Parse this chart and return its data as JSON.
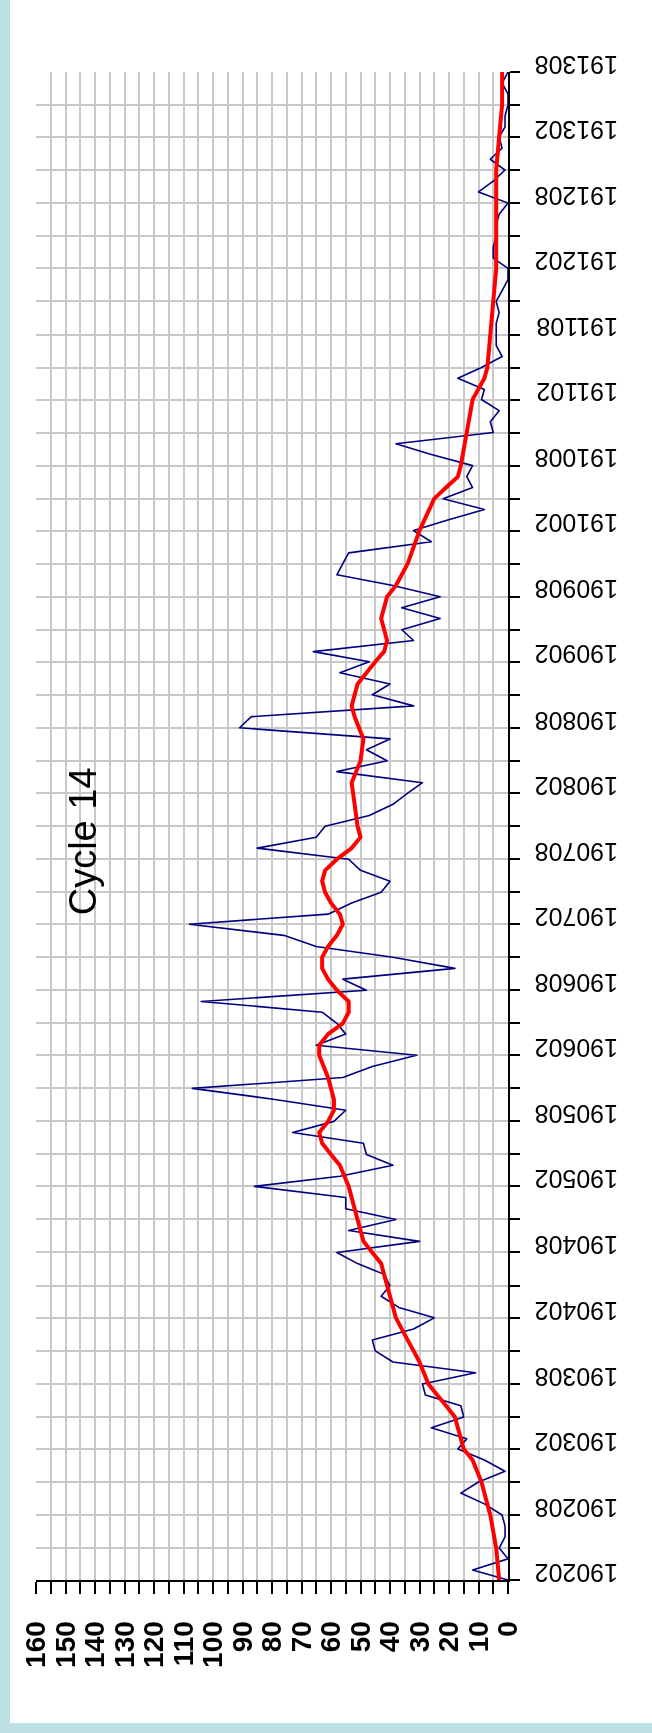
{
  "chart_data": {
    "type": "line",
    "title": "Cycle 14",
    "orientation": "horizontal",
    "x": [
      "1902-02",
      "1902-03",
      "1902-04",
      "1902-05",
      "1902-06",
      "1902-07",
      "1902-08",
      "1902-09",
      "1902-10",
      "1902-11",
      "1902-12",
      "1903-01",
      "1903-02",
      "1903-03",
      "1903-04",
      "1903-05",
      "1903-06",
      "1903-07",
      "1903-08",
      "1903-09",
      "1903-10",
      "1903-11",
      "1903-12",
      "1904-01",
      "1904-02",
      "1904-03",
      "1904-04",
      "1904-05",
      "1904-06",
      "1904-07",
      "1904-08",
      "1904-09",
      "1904-10",
      "1904-11",
      "1904-12",
      "1905-01",
      "1905-02",
      "1905-03",
      "1905-04",
      "1905-05",
      "1905-06",
      "1905-07",
      "1905-08",
      "1905-09",
      "1905-10",
      "1905-11",
      "1905-12",
      "1906-01",
      "1906-02",
      "1906-03",
      "1906-04",
      "1906-05",
      "1906-06",
      "1906-07",
      "1906-08",
      "1906-09",
      "1906-10",
      "1906-11",
      "1906-12",
      "1907-01",
      "1907-02",
      "1907-03",
      "1907-04",
      "1907-05",
      "1907-06",
      "1907-07",
      "1907-08",
      "1907-09",
      "1907-10",
      "1907-11",
      "1907-12",
      "1908-01",
      "1908-02",
      "1908-03",
      "1908-04",
      "1908-05",
      "1908-06",
      "1908-07",
      "1908-08",
      "1908-09",
      "1908-10",
      "1908-11",
      "1908-12",
      "1909-01",
      "1909-02",
      "1909-03",
      "1909-04",
      "1909-05",
      "1909-06",
      "1909-07",
      "1909-08",
      "1909-09",
      "1909-10",
      "1909-11",
      "1909-12",
      "1910-01",
      "1910-02",
      "1910-03",
      "1910-04",
      "1910-05",
      "1910-06",
      "1910-07",
      "1910-08",
      "1910-09",
      "1910-10",
      "1910-11",
      "1910-12",
      "1911-01",
      "1911-02",
      "1911-03",
      "1911-04",
      "1911-05",
      "1911-06",
      "1911-07",
      "1911-08",
      "1911-09",
      "1911-10",
      "1911-11",
      "1911-12",
      "1912-01",
      "1912-02",
      "1912-03",
      "1912-04",
      "1912-05",
      "1912-06",
      "1912-07",
      "1912-08",
      "1912-09",
      "1912-10",
      "1912-11",
      "1912-12",
      "1913-01",
      "1913-02",
      "1913-03",
      "1913-04",
      "1913-05",
      "1913-06",
      "1913-07",
      "1913-08"
    ],
    "series": [
      {
        "color": "#000080",
        "values": [
          0,
          12,
          0,
          3,
          1,
          1,
          2,
          8,
          16,
          10,
          1,
          8,
          17,
          14,
          26,
          15,
          16,
          28,
          29,
          11,
          39,
          45,
          46,
          32,
          25,
          37,
          43,
          40,
          42,
          51,
          58,
          30,
          54,
          38,
          55,
          55,
          86,
          57,
          39,
          48,
          49,
          73,
          59,
          55,
          79,
          107,
          56,
          46,
          31,
          65,
          55,
          58,
          63,
          104,
          48,
          56,
          18,
          39,
          65,
          76,
          108,
          61,
          53,
          43,
          40,
          50,
          54,
          85,
          65,
          62,
          47,
          39,
          34,
          29,
          58,
          41,
          48,
          40,
          91,
          87,
          32,
          46,
          40,
          57,
          47,
          66,
          32,
          36,
          23,
          36,
          23,
          39,
          58,
          56,
          54,
          26,
          32,
          21,
          8,
          22,
          12,
          14,
          12,
          26,
          38,
          5,
          6,
          3,
          9,
          8,
          17,
          9,
          2,
          4,
          4,
          4,
          3,
          4,
          2,
          0,
          0,
          5,
          5,
          4,
          4,
          3,
          0,
          10,
          5,
          1,
          6,
          2,
          3,
          1,
          1,
          0,
          0,
          2,
          0
        ]
      },
      {
        "color": "#ff0000",
        "x": [
          "1902-02",
          "1902-05",
          "1902-08",
          "1902-11",
          "1903-01",
          "1903-02",
          "1903-04",
          "1903-05",
          "1903-06",
          "1903-07",
          "1903-08",
          "1903-10",
          "1903-11",
          "1903-12",
          "1904-02",
          "1904-05",
          "1904-07",
          "1904-08",
          "1904-09",
          "1904-10",
          "1904-12",
          "1905-02",
          "1905-04",
          "1905-05",
          "1905-06",
          "1905-07",
          "1905-08",
          "1905-09",
          "1905-10",
          "1905-12",
          "1906-02",
          "1906-03",
          "1906-04",
          "1906-05",
          "1906-06",
          "1906-07",
          "1906-08",
          "1906-09",
          "1906-10",
          "1906-11",
          "1906-12",
          "1907-01",
          "1907-02",
          "1907-03",
          "1907-04",
          "1907-05",
          "1907-06",
          "1907-07",
          "1907-08",
          "1907-09",
          "1907-10",
          "1907-11",
          "1908-01",
          "1908-03",
          "1908-05",
          "1908-07",
          "1908-09",
          "1908-10",
          "1908-12",
          "1909-02",
          "1909-03",
          "1909-04",
          "1909-06",
          "1909-08",
          "1909-09",
          "1909-11",
          "1910-02",
          "1910-05",
          "1910-06",
          "1910-07",
          "1910-08",
          "1910-11",
          "1911-02",
          "1911-04",
          "1911-05",
          "1911-08",
          "1911-11",
          "1912-02",
          "1912-05",
          "1912-08",
          "1912-11",
          "1913-02",
          "1913-05",
          "1913-08"
        ],
        "values": [
          3,
          4,
          6,
          9,
          12,
          15,
          17,
          18,
          21,
          24,
          27,
          30,
          32,
          34,
          38,
          41,
          43,
          46,
          49,
          50,
          52,
          54,
          57,
          60,
          63,
          64,
          61,
          59,
          59,
          61,
          64,
          64,
          61,
          56,
          54,
          54,
          58,
          61,
          63,
          63,
          61,
          58,
          56,
          57,
          60,
          62,
          63,
          62,
          58,
          53,
          50,
          51,
          52,
          53,
          50,
          49,
          52,
          53,
          51,
          45,
          42,
          41,
          43,
          41,
          38,
          34,
          30,
          25,
          21,
          17,
          16,
          14,
          12,
          8,
          7,
          6,
          5,
          4,
          4,
          4,
          4,
          3,
          2,
          2
        ]
      }
    ],
    "xlim": [
      160,
      0
    ],
    "xticks": [
      0,
      {
        "value": 5,
        "label": null
      },
      10,
      {
        "value": 15,
        "label": null
      },
      20,
      {
        "value": 25,
        "label": null
      },
      30,
      {
        "value": 35,
        "label": null
      },
      40,
      {
        "value": 45,
        "label": null
      },
      50,
      {
        "value": 55,
        "label": null
      },
      60,
      {
        "value": 65,
        "label": null
      },
      70,
      {
        "value": 75,
        "label": null
      },
      80,
      {
        "value": 85,
        "label": null
      },
      90,
      {
        "value": 95,
        "label": null
      },
      100,
      {
        "value": 105,
        "label": null
      },
      110,
      {
        "value": 115,
        "label": null
      },
      120,
      {
        "value": 125,
        "label": null
      },
      130,
      {
        "value": 135,
        "label": null
      },
      140,
      {
        "value": 145,
        "label": null
      },
      150,
      {
        "value": 155,
        "label": null
      },
      160
    ],
    "ylim": [
      "1902-02",
      "1913-08"
    ],
    "yticks": [
      {
        "value": "1902-02",
        "label": "190202"
      },
      {
        "value": "1902-05",
        "label": null
      },
      {
        "value": "1902-08",
        "label": "190208"
      },
      {
        "value": "1902-11",
        "label": null
      },
      {
        "value": "1903-02",
        "label": "190302"
      },
      {
        "value": "1903-05",
        "label": null
      },
      {
        "value": "1903-08",
        "label": "190308"
      },
      {
        "value": "1903-11",
        "label": null
      },
      {
        "value": "1904-02",
        "label": "190402"
      },
      {
        "value": "1904-05",
        "label": null
      },
      {
        "value": "1904-08",
        "label": "190408"
      },
      {
        "value": "1904-11",
        "label": null
      },
      {
        "value": "1905-02",
        "label": "190502"
      },
      {
        "value": "1905-05",
        "label": null
      },
      {
        "value": "1905-08",
        "label": "190508"
      },
      {
        "value": "1905-11",
        "label": null
      },
      {
        "value": "1906-02",
        "label": "190602"
      },
      {
        "value": "1906-05",
        "label": null
      },
      {
        "value": "1906-08",
        "label": "190608"
      },
      {
        "value": "1906-11",
        "label": null
      },
      {
        "value": "1907-02",
        "label": "190702"
      },
      {
        "value": "1907-05",
        "label": null
      },
      {
        "value": "1907-08",
        "label": "190708"
      },
      {
        "value": "1907-11",
        "label": null
      },
      {
        "value": "1908-02",
        "label": "190802"
      },
      {
        "value": "1908-05",
        "label": null
      },
      {
        "value": "1908-08",
        "label": "190808"
      },
      {
        "value": "1908-11",
        "label": null
      },
      {
        "value": "1909-02",
        "label": "190902"
      },
      {
        "value": "1909-05",
        "label": null
      },
      {
        "value": "1909-08",
        "label": "190908"
      },
      {
        "value": "1909-11",
        "label": null
      },
      {
        "value": "1910-02",
        "label": "191002"
      },
      {
        "value": "1910-05",
        "label": null
      },
      {
        "value": "1910-08",
        "label": "191008"
      },
      {
        "value": "1910-11",
        "label": null
      },
      {
        "value": "1911-02",
        "label": "191102"
      },
      {
        "value": "1911-05",
        "label": null
      },
      {
        "value": "1911-08",
        "label": "191108"
      },
      {
        "value": "1911-11",
        "label": null
      },
      {
        "value": "1912-02",
        "label": "191202"
      },
      {
        "value": "1912-05",
        "label": null
      },
      {
        "value": "1912-08",
        "label": "191208"
      },
      {
        "value": "1912-11",
        "label": null
      },
      {
        "value": "1913-02",
        "label": "191302"
      },
      {
        "value": "1913-05",
        "label": null
      },
      {
        "value": "1913-08",
        "label": "191308"
      }
    ],
    "grid": true
  }
}
